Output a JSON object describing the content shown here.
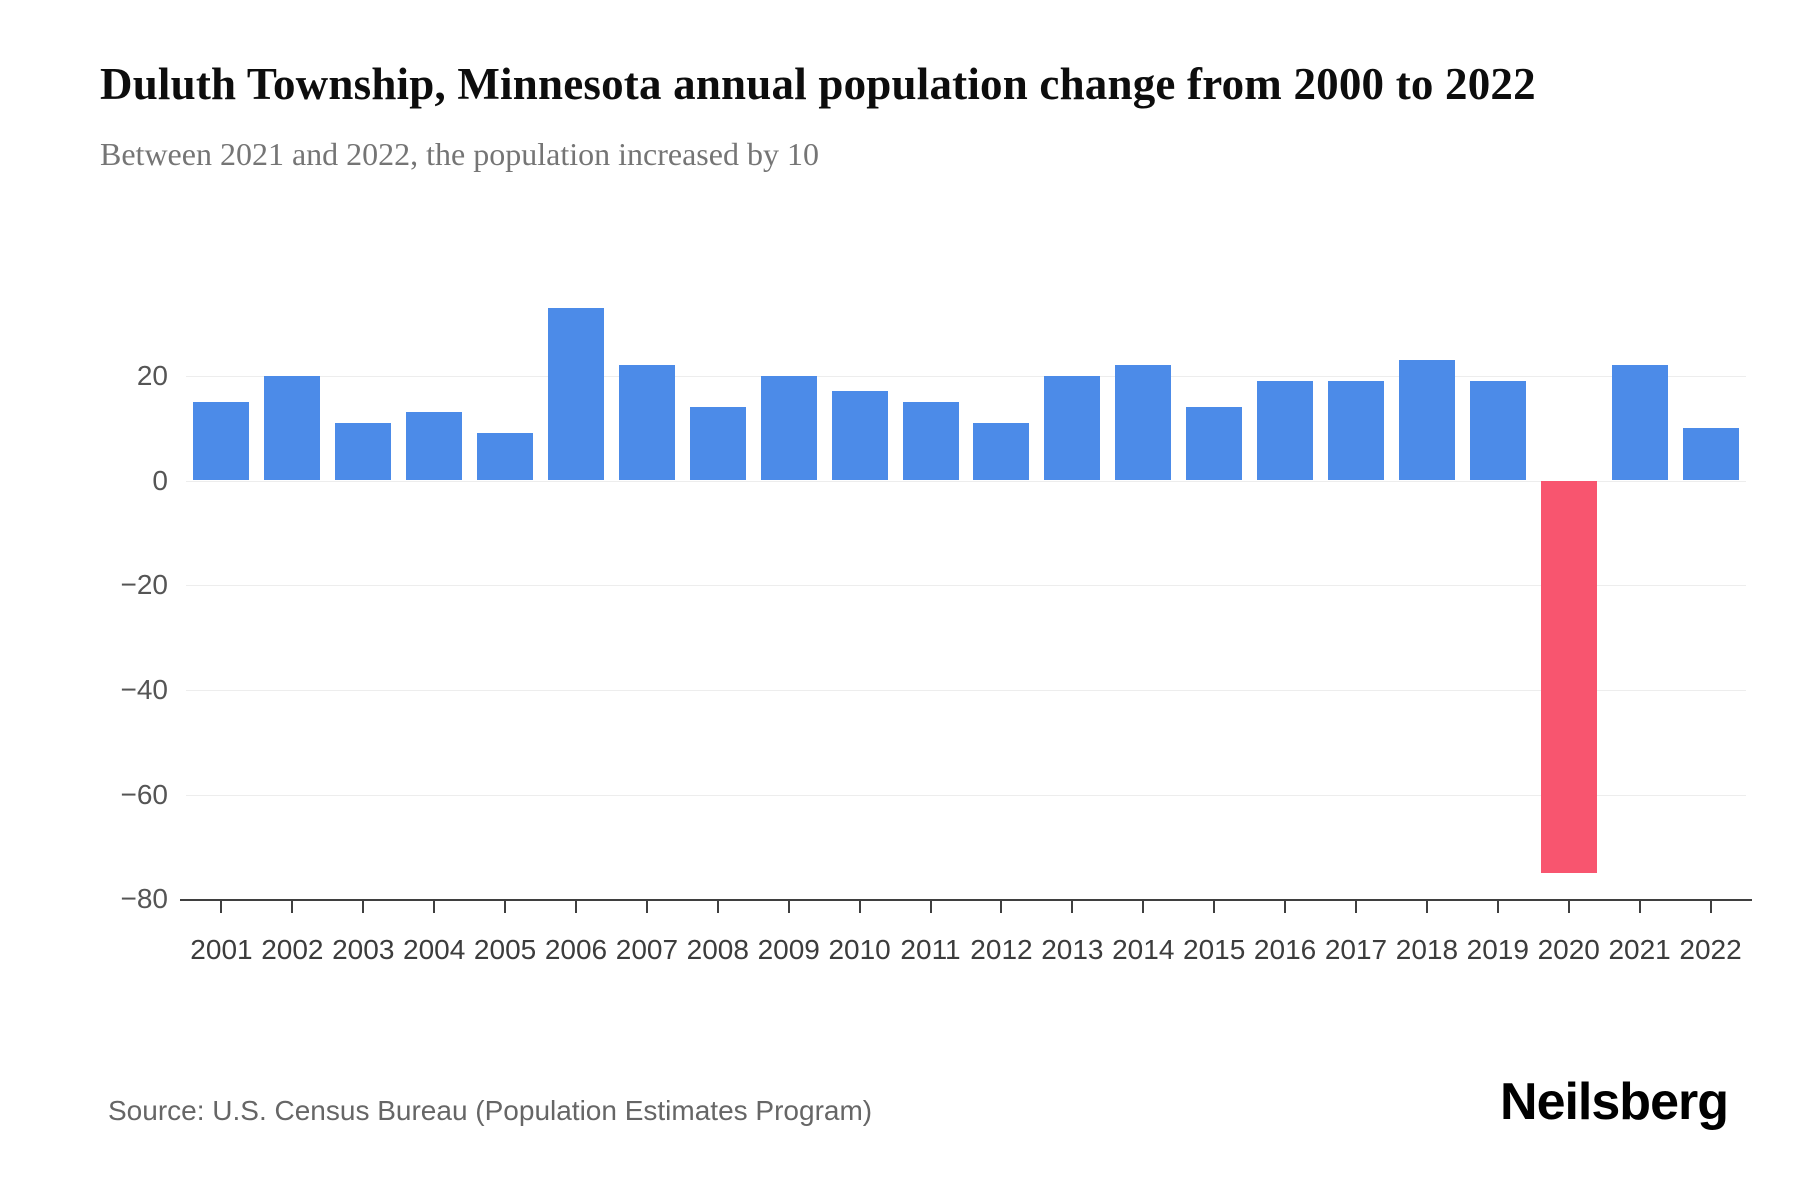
{
  "page": {
    "title": "Duluth Township, Minnesota annual population change from 2000 to 2022",
    "subtitle": "Between 2021 and 2022, the population increased by 10",
    "source": "Source: U.S. Census Bureau (Population Estimates Program)",
    "brand": "Neilsberg"
  },
  "chart_data": {
    "type": "bar",
    "title": "Duluth Township, Minnesota annual population change from 2000 to 2022",
    "subtitle": "Between 2021 and 2022, the population increased by 10",
    "categories": [
      "2001",
      "2002",
      "2003",
      "2004",
      "2005",
      "2006",
      "2007",
      "2008",
      "2009",
      "2010",
      "2011",
      "2012",
      "2013",
      "2014",
      "2015",
      "2016",
      "2017",
      "2018",
      "2019",
      "2020",
      "2021",
      "2022"
    ],
    "values": [
      15,
      20,
      11,
      13,
      9,
      33,
      22,
      14,
      20,
      17,
      15,
      11,
      20,
      22,
      14,
      19,
      19,
      23,
      19,
      -75,
      22,
      10
    ],
    "xlabel": "",
    "ylabel": "",
    "ylim": [
      -80,
      48
    ],
    "yticks": [
      20,
      0,
      -20,
      -40,
      -60,
      -80
    ],
    "grid": true,
    "legend": "none",
    "bar_color": "#4C8BE8",
    "negative_color": "#F8556F"
  }
}
